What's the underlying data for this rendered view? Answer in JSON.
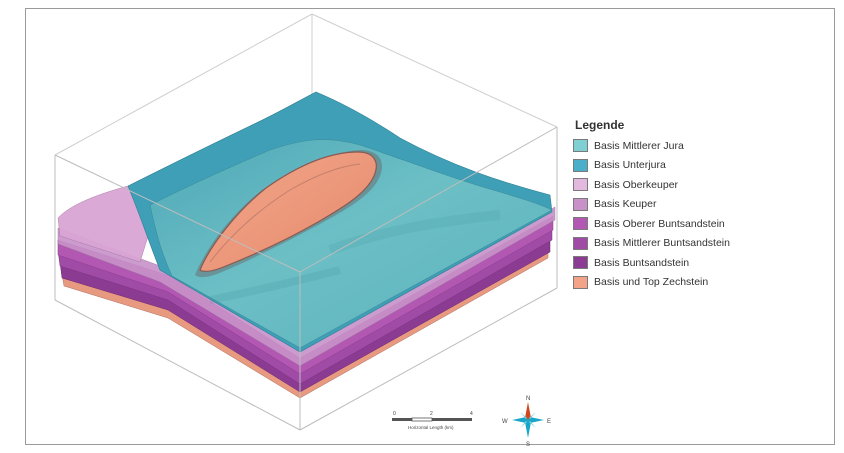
{
  "legend": {
    "title": "Legende",
    "items": [
      {
        "label": "Basis Mittlerer Jura",
        "color": "#7fcfd3"
      },
      {
        "label": "Basis Unterjura",
        "color": "#4ab0c9"
      },
      {
        "label": "Basis Oberkeuper",
        "color": "#e3b8de"
      },
      {
        "label": "Basis Keuper",
        "color": "#c892c9"
      },
      {
        "label": "Basis Oberer Buntsandstein",
        "color": "#b258b3"
      },
      {
        "label": "Basis Mittlerer Buntsandstein",
        "color": "#a04ca6"
      },
      {
        "label": "Basis Buntsandstein",
        "color": "#8c3b92"
      },
      {
        "label": "Basis und Top Zechstein",
        "color": "#f2a388"
      }
    ]
  },
  "scale_bar": {
    "ticks": [
      "0",
      "2",
      "4"
    ],
    "label": "Horizontal Length (km)"
  },
  "compass": {
    "north": "N",
    "south": "S",
    "east": "E",
    "west": "W"
  }
}
